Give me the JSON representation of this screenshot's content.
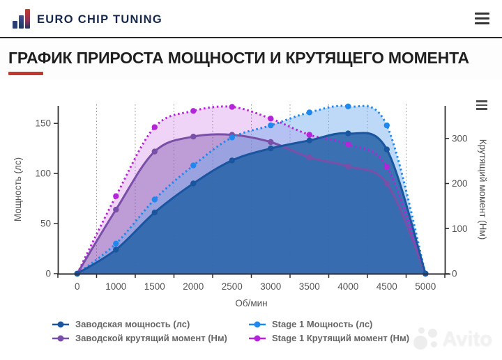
{
  "header": {
    "logo_text": "EURO CHIP TUNING"
  },
  "title": {
    "text": "ГРАФИК ПРИРОСТА МОЩНОСТИ И КРУТЯЩЕГО МОМЕНТА",
    "accent_color": "#bf3a2e"
  },
  "watermark": {
    "text": "Avito"
  },
  "chart_data": {
    "type": "line",
    "x_categories": [
      "0",
      "1000",
      "1500",
      "2000",
      "2500",
      "3000",
      "3500",
      "4000",
      "4500",
      "5000"
    ],
    "xlabel": "Об/мин",
    "grid": "vertical-dotted",
    "legend_position": "bottom",
    "y_left": {
      "label": "Мощность (лс)",
      "ticks": [
        0,
        50,
        100,
        150
      ],
      "max": 171
    },
    "y_right": {
      "label": "Крутящий момент (Нм)",
      "ticks": [
        0,
        100,
        200,
        300
      ],
      "max": 380
    },
    "series": [
      {
        "name": "Заводская мощность (лс)",
        "axis": "left",
        "line": "solid",
        "color": "#1a55a0",
        "fill": "rgba(42,100,170,0.88)",
        "values": [
          0,
          24,
          61,
          90,
          113,
          125,
          133,
          140,
          124,
          0
        ]
      },
      {
        "name": "Stage 1 Мощность (лс)",
        "axis": "left",
        "line": "dotted",
        "color": "#1f88ee",
        "fill": "rgba(110,170,238,0.45)",
        "values": [
          0,
          30,
          74,
          108,
          136,
          148,
          161,
          167,
          148,
          0
        ]
      },
      {
        "name": "Заводской крутящий момент (Нм)",
        "axis": "right",
        "line": "solid",
        "color": "#7a4fa8",
        "fill": "rgba(122,79,168,0.42)",
        "values": [
          0,
          142,
          271,
          304,
          308,
          292,
          258,
          238,
          200,
          0
        ]
      },
      {
        "name": "Stage 1 Крутящий момент (Нм)",
        "axis": "right",
        "line": "dotted",
        "color": "#b424d8",
        "fill": "rgba(180,38,216,0.20)",
        "values": [
          0,
          172,
          325,
          361,
          370,
          344,
          308,
          287,
          237,
          0
        ]
      }
    ]
  }
}
